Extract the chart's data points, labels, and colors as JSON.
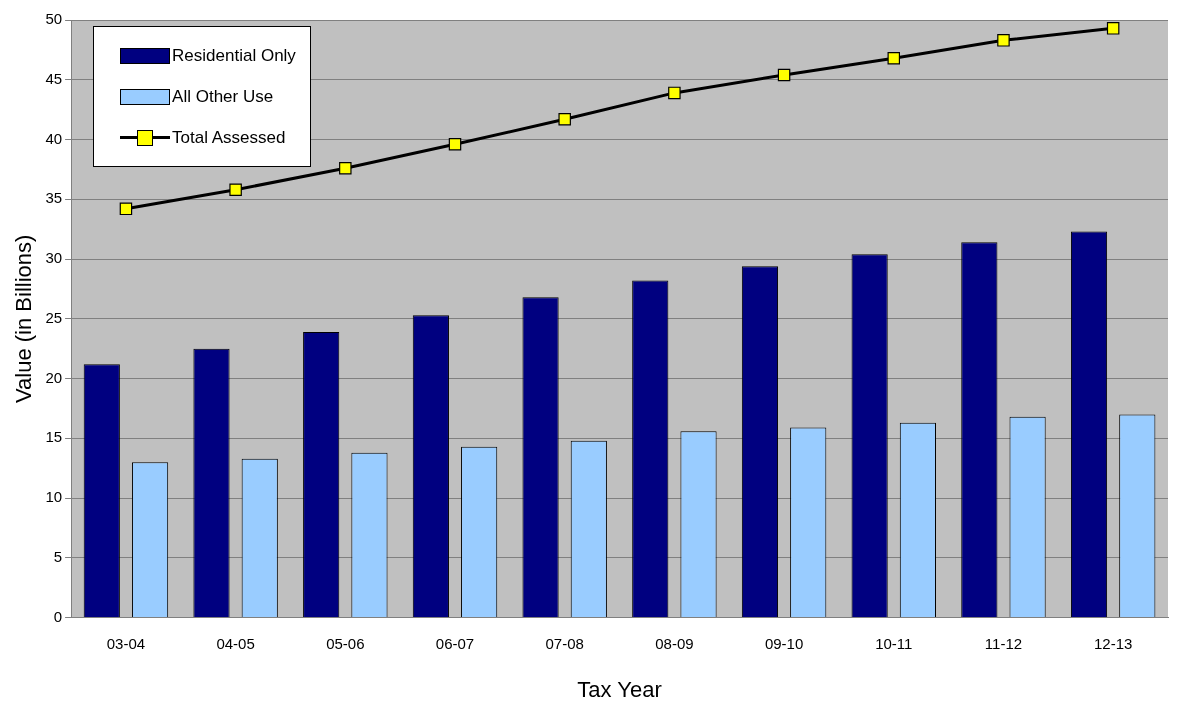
{
  "chart_data": {
    "type": "bar",
    "xlabel": "Tax Year",
    "ylabel": "Value (in Billions)",
    "categories": [
      "03-04",
      "04-05",
      "05-06",
      "06-07",
      "07-08",
      "08-09",
      "09-10",
      "10-11",
      "11-12",
      "12-13"
    ],
    "series": [
      {
        "name": "Residential Only",
        "color": "#000080",
        "values": [
          21.2,
          22.5,
          23.9,
          25.3,
          26.8,
          28.2,
          29.4,
          30.4,
          31.4,
          32.3
        ]
      },
      {
        "name": "All Other Use",
        "color": "#99ccff",
        "values": [
          13.0,
          13.3,
          13.8,
          14.3,
          14.8,
          15.6,
          15.9,
          16.3,
          16.8,
          17.0
        ]
      },
      {
        "name": "Total Assessed",
        "type": "line",
        "color": "#000000",
        "marker": "square",
        "colors": [
          "#ffff00",
          "#ffff00",
          "#ffff00",
          "#ffff00",
          "#ffff00",
          "#ffff00",
          "#ffff00",
          "#ffff00",
          "#ffff00",
          "#ffff00"
        ],
        "line_style": "solid",
        "values": [
          34.2,
          35.8,
          37.6,
          39.6,
          41.7,
          43.9,
          45.4,
          46.8,
          48.3,
          49.3
        ]
      }
    ],
    "ylim": [
      0,
      50
    ],
    "yticks": [
      0,
      5,
      10,
      15,
      20,
      25,
      30,
      35,
      40,
      45,
      50
    ],
    "grid": "y",
    "legend": "top left"
  }
}
